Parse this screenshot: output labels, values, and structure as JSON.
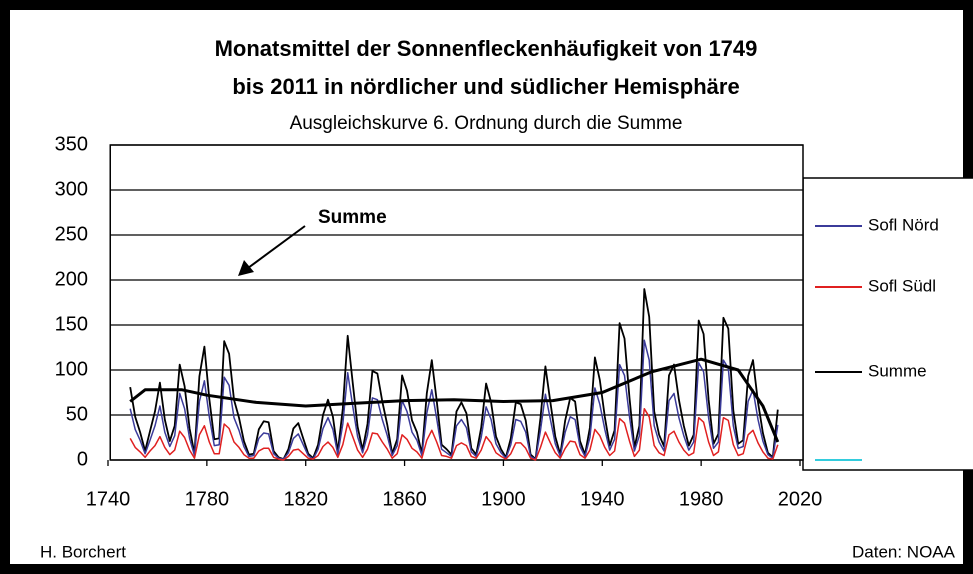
{
  "chart_data": {
    "type": "line",
    "title": "Monatsmittel der Sonnenfleckenhäufigkeit von 1749",
    "title_line2": "bis 2011 in nördlicher und südlicher Hemisphäre",
    "subtitle": "Ausgleichskurve 6. Ordnung durch die Summe",
    "annotation": "Summe",
    "author": "H. Borchert",
    "source": "Daten: NOAA",
    "xlim": [
      1740,
      2020
    ],
    "xticks": [
      1740,
      1780,
      1820,
      1860,
      1900,
      1940,
      1980,
      2020
    ],
    "ylim": [
      0,
      350
    ],
    "yticks": [
      0,
      50,
      100,
      150,
      200,
      250,
      300,
      350
    ],
    "grid": true,
    "x": [
      1749,
      1751,
      1753,
      1755,
      1757,
      1759,
      1761,
      1763,
      1765,
      1767,
      1769,
      1771,
      1773,
      1775,
      1777,
      1779,
      1781,
      1783,
      1785,
      1787,
      1789,
      1791,
      1793,
      1795,
      1797,
      1799,
      1801,
      1803,
      1805,
      1807,
      1809,
      1811,
      1813,
      1815,
      1817,
      1819,
      1821,
      1823,
      1825,
      1827,
      1829,
      1831,
      1833,
      1835,
      1837,
      1839,
      1841,
      1843,
      1845,
      1847,
      1849,
      1851,
      1853,
      1855,
      1857,
      1859,
      1861,
      1863,
      1865,
      1867,
      1869,
      1871,
      1873,
      1875,
      1877,
      1879,
      1881,
      1883,
      1885,
      1887,
      1889,
      1891,
      1893,
      1895,
      1897,
      1899,
      1901,
      1903,
      1905,
      1907,
      1909,
      1911,
      1913,
      1915,
      1917,
      1919,
      1921,
      1923,
      1925,
      1927,
      1929,
      1931,
      1933,
      1935,
      1937,
      1939,
      1941,
      1943,
      1945,
      1947,
      1949,
      1951,
      1953,
      1955,
      1957,
      1959,
      1961,
      1963,
      1965,
      1967,
      1969,
      1971,
      1973,
      1975,
      1977,
      1979,
      1981,
      1983,
      1985,
      1987,
      1989,
      1991,
      1993,
      1995,
      1997,
      1999,
      2001,
      2003,
      2005,
      2007,
      2009,
      2011
    ],
    "series": [
      {
        "name": "Sofl Nörd",
        "color": "#3b3b9a",
        "width": 1.5,
        "values": [
          57,
          34,
          22,
          7,
          22,
          38,
          60,
          31,
          15,
          27,
          74,
          57,
          24,
          5,
          65,
          88,
          48,
          16,
          17,
          92,
          83,
          47,
          33,
          15,
          4,
          5,
          24,
          30,
          29,
          7,
          2,
          1,
          8,
          24,
          29,
          17,
          5,
          1,
          12,
          35,
          47,
          34,
          6,
          40,
          97,
          60,
          26,
          8,
          28,
          69,
          67,
          45,
          27,
          5,
          16,
          66,
          54,
          31,
          22,
          5,
          52,
          78,
          46,
          12,
          8,
          4,
          38,
          45,
          36,
          9,
          4,
          25,
          59,
          45,
          18,
          8,
          2,
          17,
          45,
          43,
          31,
          4,
          1,
          33,
          73,
          45,
          18,
          4,
          31,
          48,
          45,
          15,
          4,
          25,
          80,
          62,
          34,
          11,
          23,
          106,
          94,
          48,
          10,
          27,
          133,
          111,
          38,
          20,
          10,
          66,
          74,
          47,
          27,
          11,
          20,
          108,
          98,
          47,
          13,
          20,
          111,
          102,
          38,
          13,
          15,
          65,
          78,
          45,
          21,
          6,
          2,
          39
        ]
      },
      {
        "name": "Sofl Südl",
        "color": "#e02020",
        "width": 1.5,
        "values": [
          24,
          14,
          9,
          3,
          10,
          16,
          26,
          14,
          6,
          11,
          32,
          25,
          11,
          2,
          28,
          38,
          20,
          7,
          7,
          40,
          35,
          20,
          14,
          6,
          2,
          2,
          10,
          13,
          13,
          3,
          1,
          0,
          4,
          11,
          12,
          7,
          2,
          1,
          5,
          15,
          20,
          14,
          3,
          17,
          41,
          26,
          11,
          3,
          12,
          30,
          29,
          20,
          12,
          2,
          7,
          28,
          23,
          13,
          9,
          2,
          22,
          33,
          20,
          5,
          4,
          2,
          16,
          19,
          16,
          4,
          2,
          11,
          26,
          19,
          8,
          4,
          1,
          7,
          19,
          19,
          13,
          2,
          0,
          14,
          31,
          19,
          8,
          2,
          13,
          21,
          20,
          6,
          2,
          11,
          34,
          27,
          14,
          5,
          10,
          46,
          41,
          21,
          4,
          11,
          57,
          48,
          16,
          8,
          5,
          28,
          32,
          20,
          11,
          5,
          8,
          47,
          42,
          20,
          5,
          9,
          47,
          44,
          17,
          5,
          7,
          28,
          33,
          19,
          9,
          2,
          1,
          17
        ]
      },
      {
        "name": "Summe",
        "color": "#000000",
        "width": 1.8,
        "values": [
          81,
          48,
          31,
          10,
          32,
          54,
          86,
          45,
          21,
          38,
          106,
          82,
          35,
          7,
          93,
          126,
          68,
          23,
          24,
          132,
          118,
          67,
          47,
          21,
          6,
          7,
          34,
          43,
          42,
          10,
          3,
          1,
          12,
          35,
          41,
          24,
          7,
          2,
          17,
          50,
          67,
          48,
          9,
          57,
          138,
          86,
          37,
          11,
          40,
          99,
          96,
          65,
          39,
          7,
          23,
          94,
          77,
          44,
          31,
          7,
          74,
          111,
          66,
          17,
          12,
          6,
          54,
          64,
          52,
          13,
          6,
          36,
          85,
          64,
          26,
          12,
          3,
          24,
          64,
          62,
          44,
          6,
          1,
          47,
          104,
          64,
          26,
          6,
          44,
          69,
          65,
          21,
          6,
          36,
          114,
          89,
          48,
          16,
          33,
          152,
          135,
          69,
          14,
          38,
          190,
          159,
          54,
          28,
          15,
          94,
          106,
          67,
          38,
          16,
          28,
          155,
          140,
          67,
          18,
          29,
          158,
          146,
          55,
          18,
          22,
          93,
          111,
          64,
          30,
          8,
          3,
          56
        ]
      }
    ],
    "trend": {
      "color": "#000000",
      "x": [
        1749,
        1755,
        1770,
        1780,
        1800,
        1820,
        1840,
        1860,
        1880,
        1900,
        1920,
        1940,
        1960,
        1980,
        1995,
        2005,
        2011
      ],
      "values": [
        65,
        78,
        78,
        72,
        64,
        60,
        63,
        66,
        67,
        65,
        66,
        75,
        98,
        112,
        100,
        60,
        20
      ]
    }
  }
}
